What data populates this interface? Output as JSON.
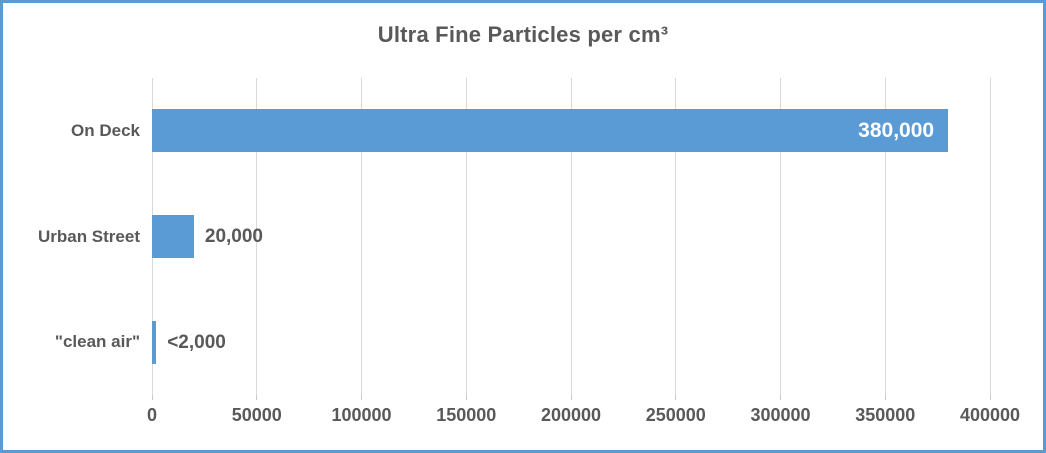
{
  "colors": {
    "bar": "#5B9BD5",
    "frame_border": "#5B9BD5",
    "gridline": "#D9D9D9",
    "text": "#595959",
    "bar_label_inside": "#FFFFFF"
  },
  "chart_data": {
    "type": "bar",
    "orientation": "horizontal",
    "title": "Ultra Fine Particles per cm³",
    "xlabel": "",
    "ylabel": "",
    "categories": [
      "On Deck",
      "Urban Street",
      "\"clean air\""
    ],
    "values": [
      380000,
      20000,
      2000
    ],
    "data_labels": [
      "380,000",
      "20,000",
      "<2,000"
    ],
    "data_label_positions": [
      "inside-end",
      "outside-end",
      "outside-end"
    ],
    "xlim": [
      0,
      400000
    ],
    "xticks": [
      0,
      50000,
      100000,
      150000,
      200000,
      250000,
      300000,
      350000,
      400000
    ],
    "xtick_labels": [
      "0",
      "50000",
      "100000",
      "150000",
      "200000",
      "250000",
      "300000",
      "350000",
      "400000"
    ],
    "grid": "vertical",
    "legend": "none"
  }
}
